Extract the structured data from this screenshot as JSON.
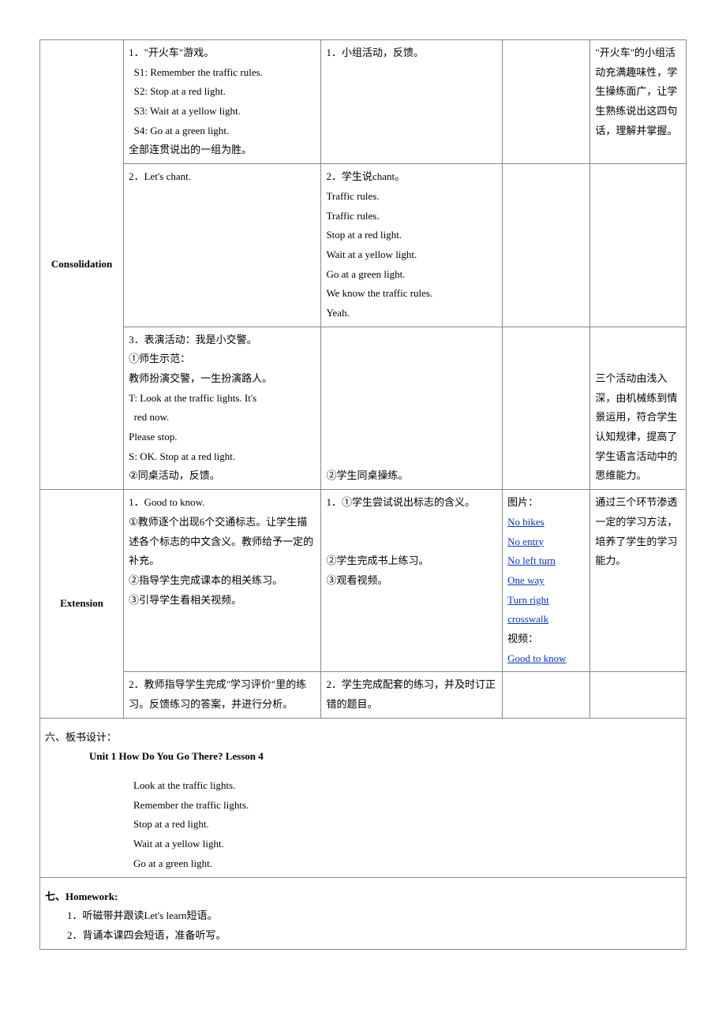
{
  "table": {
    "consolidation": {
      "label": "Consolidation",
      "rows": [
        {
          "teach": "1．\"开火车\"游戏。\n  S1: Remember the traffic rules.\n  S2: Stop at a red light.\n  S3: Wait at a yellow light.\n  S4: Go at a green light.\n全部连贯说出的一组为胜。",
          "student": "1．小组活动，反馈。",
          "material": "",
          "note": "\"开火车\"的小组活动充满趣味性，学生操练面广，让学生熟练说出这四句话，理解并掌握。"
        },
        {
          "teach": "2．Let's chant.",
          "student": "2．学生说chant。\nTraffic rules.\nTraffic rules.\nStop at a red light.\nWait at a yellow light.\nGo at a green light.\nWe know the traffic rules.\nYeah.",
          "material": "",
          "note": ""
        },
        {
          "teach": "3．表演活动：我是小交警。\n①师生示范：\n教师扮演交警，一生扮演路人。\nT: Look at the traffic lights. It's\n  red now.\nPlease stop.\nS: OK. Stop at a red light.\n②同桌活动，反馈。",
          "student": "②学生同桌操练。",
          "material": "",
          "note": "三个活动由浅入深，由机械练到情景运用，符合学生认知规律，提高了学生语言活动中的思维能力。"
        }
      ]
    },
    "extension": {
      "label": "Extension",
      "rows": [
        {
          "teach": "1．Good to know.\n①教师逐个出现6个交通标志。让学生描述各个标志的中文含义。教师给予一定的补充。\n②指导学生完成课本的相关练习。\n③引导学生看相关视频。",
          "student": "1．①学生尝试说出标志的含义。\n\n\n②学生完成书上练习。\n③观看视频。",
          "material_label": "图片：",
          "material_links": [
            "No bikes",
            "No entry",
            "No left turn",
            "One way",
            "Turn right",
            "crosswalk"
          ],
          "material_label2": "视频：",
          "material_links2": [
            "Good to know"
          ],
          "note": "通过三个环节渗透一定的学习方法，培养了学生的学习能力。"
        },
        {
          "teach": "2．教师指导学生完成\"学习评价\"里的练习。反馈练习的答案，并进行分析。",
          "student": "2．学生完成配套的练习，并及时订正错的题目。",
          "material": "",
          "note": ""
        }
      ]
    }
  },
  "section6": {
    "label": "六、板书设计：",
    "title": "Unit 1    How Do You Go There?      Lesson 4",
    "lines": [
      "Look at the traffic lights.",
      "Remember the traffic lights.",
      "Stop at a red light.",
      "Wait at a yellow light.",
      "Go at a green light."
    ]
  },
  "section7": {
    "label": "七、Homework:",
    "items": [
      "1．听磁带并跟读Let's learn短语。",
      "2．背诵本课四会短语，准备听写。"
    ]
  }
}
